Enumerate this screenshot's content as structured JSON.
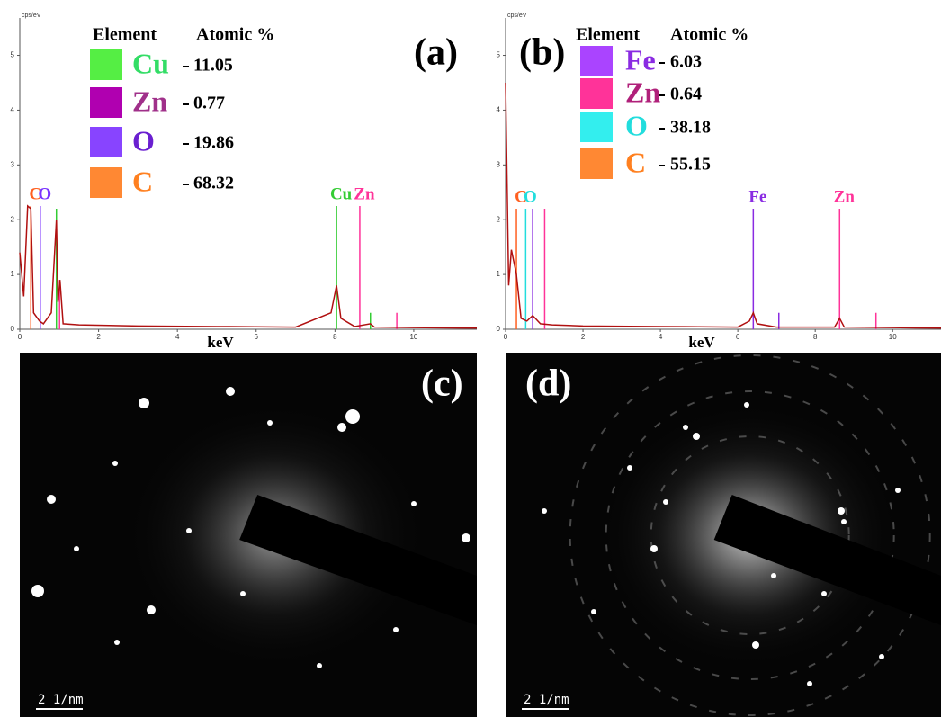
{
  "chart_data": [
    {
      "type": "line",
      "panel": "(a)",
      "y_unit": "cps/eV",
      "xlabel": "keV",
      "xlim": [
        0,
        11.6
      ],
      "xticks": [
        0,
        2,
        4,
        6,
        8,
        10
      ],
      "ylim": [
        0,
        5.6
      ],
      "yticks": [
        0,
        1,
        2,
        3,
        4,
        5
      ],
      "color": "#b01010",
      "x": [
        0,
        0.1,
        0.2,
        0.28,
        0.35,
        0.5,
        0.6,
        0.8,
        0.93,
        0.97,
        1.02,
        1.1,
        1.5,
        3,
        5,
        7,
        7.9,
        8.04,
        8.15,
        8.5,
        8.9,
        9,
        10,
        11.6
      ],
      "values": [
        1.4,
        0.6,
        2.25,
        2.2,
        0.3,
        0.15,
        0.1,
        0.3,
        2.0,
        0.5,
        0.9,
        0.1,
        0.08,
        0.06,
        0.05,
        0.04,
        0.3,
        0.8,
        0.2,
        0.05,
        0.1,
        0.04,
        0.03,
        0.02
      ],
      "markers": [
        {
          "label": "C",
          "x": 0.28,
          "height": 2.25,
          "color": "#ff6020"
        },
        {
          "label": "O",
          "x": 0.52,
          "height": 2.25,
          "color": "#7a33ff"
        },
        {
          "label": null,
          "x": 0.93,
          "height": 2.2,
          "color": "#33cc33"
        },
        {
          "label": null,
          "x": 1.01,
          "height": 0.9,
          "color": "#ff3399"
        },
        {
          "label": "Cu",
          "x": 8.04,
          "height": 2.25,
          "color": "#33cc33"
        },
        {
          "label": "Zn",
          "x": 8.63,
          "height": 2.25,
          "color": "#ff3399"
        },
        {
          "label": null,
          "x": 8.9,
          "height": 0.3,
          "color": "#33cc33"
        },
        {
          "label": null,
          "x": 9.57,
          "height": 0.3,
          "color": "#ff3399"
        }
      ],
      "composition": {
        "headers": [
          "Element",
          "Atomic %"
        ],
        "rows": [
          {
            "element": "Cu",
            "color": "#55ee44",
            "text_color": "#33dd66",
            "percent": 11.05
          },
          {
            "element": "Zn",
            "color": "#b000b0",
            "text_color": "#a0308a",
            "percent": 0.77
          },
          {
            "element": "O",
            "color": "#8844ff",
            "text_color": "#6a1fd0",
            "percent": 19.86
          },
          {
            "element": "C",
            "color": "#ff8833",
            "text_color": "#ff8020",
            "percent": 68.32
          }
        ]
      }
    },
    {
      "type": "line",
      "panel": "(b)",
      "y_unit": "cps/eV",
      "xlabel": "keV",
      "xlim": [
        0,
        11.25
      ],
      "xticks": [
        0,
        2,
        4,
        6,
        8,
        10
      ],
      "ylim": [
        0,
        5.6
      ],
      "yticks": [
        0,
        1,
        2,
        3,
        4,
        5
      ],
      "color": "#b01010",
      "x": [
        0,
        0.08,
        0.15,
        0.28,
        0.4,
        0.55,
        0.7,
        0.9,
        1.2,
        2,
        4,
        6,
        6.3,
        6.4,
        6.5,
        7,
        8.5,
        8.63,
        8.75,
        10,
        11.25
      ],
      "values": [
        4.5,
        0.8,
        1.45,
        1.0,
        0.2,
        0.15,
        0.25,
        0.1,
        0.08,
        0.06,
        0.05,
        0.04,
        0.15,
        0.3,
        0.1,
        0.04,
        0.04,
        0.2,
        0.04,
        0.03,
        0.02
      ],
      "markers": [
        {
          "label": "C",
          "x": 0.28,
          "height": 2.2,
          "color": "#ff6020"
        },
        {
          "label": "O",
          "x": 0.52,
          "height": 2.2,
          "color": "#22dddd"
        },
        {
          "label": null,
          "x": 0.7,
          "height": 2.2,
          "color": "#8a2be2"
        },
        {
          "label": null,
          "x": 1.01,
          "height": 2.2,
          "color": "#ff3399"
        },
        {
          "label": "Fe",
          "x": 6.4,
          "height": 2.2,
          "color": "#8a2be2"
        },
        {
          "label": null,
          "x": 7.06,
          "height": 0.3,
          "color": "#8a2be2"
        },
        {
          "label": "Zn",
          "x": 8.63,
          "height": 2.2,
          "color": "#ff3399"
        },
        {
          "label": null,
          "x": 9.57,
          "height": 0.3,
          "color": "#ff3399"
        }
      ],
      "composition": {
        "headers": [
          "Element",
          "Atomic %"
        ],
        "rows": [
          {
            "element": "Fe",
            "color": "#aa44ff",
            "text_color": "#8a2be2",
            "percent": 6.03
          },
          {
            "element": "Zn",
            "color": "#ff3399",
            "text_color": "#b0207a",
            "percent": 0.64
          },
          {
            "element": "O",
            "color": "#33eeee",
            "text_color": "#22dddd",
            "percent": 38.18
          },
          {
            "element": "C",
            "color": "#ff8833",
            "text_color": "#ff8020",
            "percent": 55.15
          }
        ]
      }
    }
  ],
  "images": [
    {
      "label": "(c)",
      "scale_bar": "2 1/nm"
    },
    {
      "label": "(d)",
      "scale_bar": "2 1/nm"
    }
  ]
}
